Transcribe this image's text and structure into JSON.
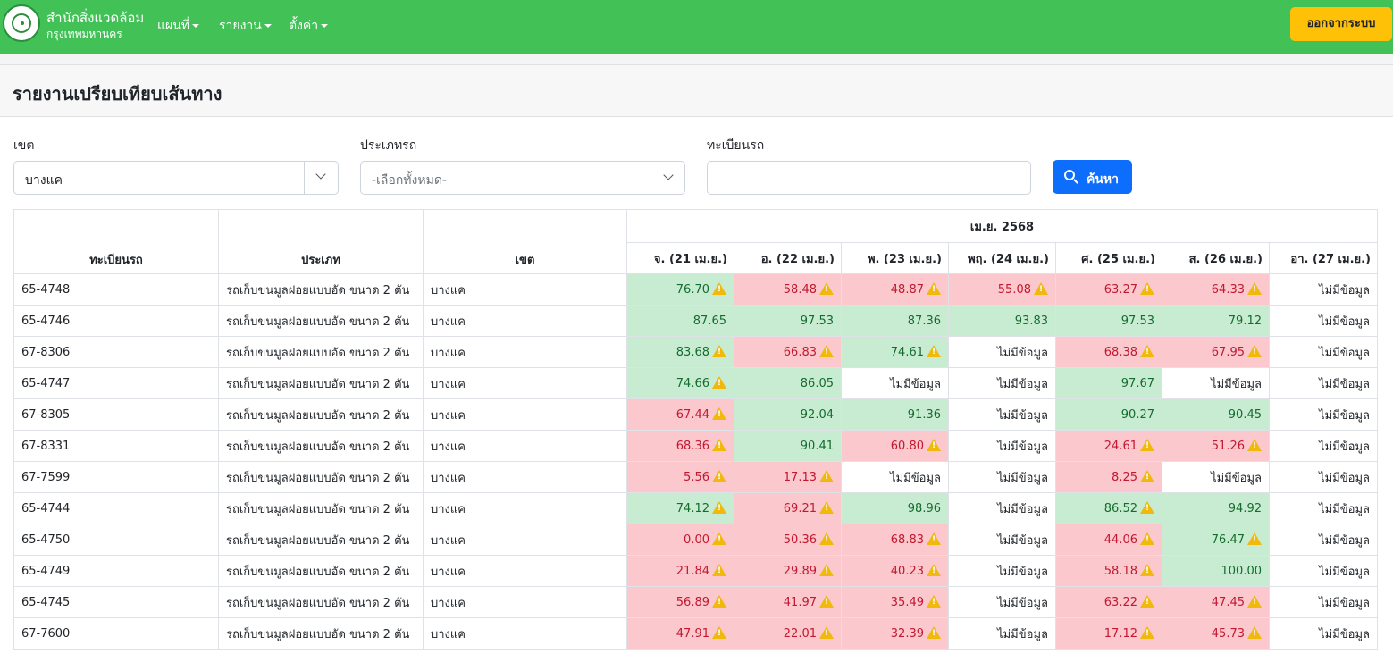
{
  "nav": {
    "brand_title": "สำนักสิ่งแวดล้อม",
    "brand_subtitle": "กรุงเทพมหานคร",
    "menus": [
      "แผนที่",
      "รายงาน",
      "ตั้งค่า"
    ],
    "logout_label": "ออกจากระบบ"
  },
  "page": {
    "title": "รายงานเปรียบเทียบเส้นทาง"
  },
  "filters": {
    "district_label": "เขต",
    "district_value": "บางแค",
    "type_label": "ประเภทรถ",
    "type_value": "-เลือกทั้งหมด-",
    "plate_label": "ทะเบียนรถ",
    "plate_value": "",
    "search_label": "ค้นหา"
  },
  "colors": {
    "good": "#c8ecd1",
    "bad": "#fbc8cd",
    "warning": "#f0b90b",
    "navbar": "#41c156",
    "logout": "#ffc107",
    "primary": "#0d6efd"
  },
  "table": {
    "headers": {
      "plate": "ทะเบียนรถ",
      "type": "ประเภท",
      "district": "เขต",
      "month": "เม.ย. 2568"
    },
    "days": [
      "จ. (21 เม.ย.)",
      "อ. (22 เม.ย.)",
      "พ. (23 เม.ย.)",
      "พฤ. (24 เม.ย.)",
      "ศ. (25 เม.ย.)",
      "ส. (26 เม.ย.)",
      "อา. (27 เม.ย.)"
    ],
    "no_data_text": "ไม่มีข้อมูล",
    "rows": [
      {
        "plate": "65-4748",
        "type": "รถเก็บขนมูลฝอยแบบอัด ขนาด 2 ตัน",
        "district": "บางแค",
        "cells": [
          {
            "value": "76.70",
            "status": "good",
            "warn": true
          },
          {
            "value": "58.48",
            "status": "bad",
            "warn": true
          },
          {
            "value": "48.87",
            "status": "bad",
            "warn": true
          },
          {
            "value": "55.08",
            "status": "bad",
            "warn": true
          },
          {
            "value": "63.27",
            "status": "bad",
            "warn": true
          },
          {
            "value": "64.33",
            "status": "bad",
            "warn": true
          },
          {
            "value": "ไม่มีข้อมูล",
            "status": "none",
            "warn": false
          }
        ]
      },
      {
        "plate": "65-4746",
        "type": "รถเก็บขนมูลฝอยแบบอัด ขนาด 2 ตัน",
        "district": "บางแค",
        "cells": [
          {
            "value": "87.65",
            "status": "good",
            "warn": false
          },
          {
            "value": "97.53",
            "status": "good",
            "warn": false
          },
          {
            "value": "87.36",
            "status": "good",
            "warn": false
          },
          {
            "value": "93.83",
            "status": "good",
            "warn": false
          },
          {
            "value": "97.53",
            "status": "good",
            "warn": false
          },
          {
            "value": "79.12",
            "status": "good",
            "warn": false
          },
          {
            "value": "ไม่มีข้อมูล",
            "status": "none",
            "warn": false
          }
        ]
      },
      {
        "plate": "67-8306",
        "type": "รถเก็บขนมูลฝอยแบบอัด ขนาด 2 ตัน",
        "district": "บางแค",
        "cells": [
          {
            "value": "83.68",
            "status": "good",
            "warn": true
          },
          {
            "value": "66.83",
            "status": "bad",
            "warn": true
          },
          {
            "value": "74.61",
            "status": "good",
            "warn": true
          },
          {
            "value": "ไม่มีข้อมูล",
            "status": "none",
            "warn": false
          },
          {
            "value": "68.38",
            "status": "bad",
            "warn": true
          },
          {
            "value": "67.95",
            "status": "bad",
            "warn": true
          },
          {
            "value": "ไม่มีข้อมูล",
            "status": "none",
            "warn": false
          }
        ]
      },
      {
        "plate": "65-4747",
        "type": "รถเก็บขนมูลฝอยแบบอัด ขนาด 2 ตัน",
        "district": "บางแค",
        "cells": [
          {
            "value": "74.66",
            "status": "good",
            "warn": true
          },
          {
            "value": "86.05",
            "status": "good",
            "warn": false
          },
          {
            "value": "ไม่มีข้อมูล",
            "status": "none",
            "warn": false
          },
          {
            "value": "ไม่มีข้อมูล",
            "status": "none",
            "warn": false
          },
          {
            "value": "97.67",
            "status": "good",
            "warn": false
          },
          {
            "value": "ไม่มีข้อมูล",
            "status": "none",
            "warn": false
          },
          {
            "value": "ไม่มีข้อมูล",
            "status": "none",
            "warn": false
          }
        ]
      },
      {
        "plate": "67-8305",
        "type": "รถเก็บขนมูลฝอยแบบอัด ขนาด 2 ตัน",
        "district": "บางแค",
        "cells": [
          {
            "value": "67.44",
            "status": "bad",
            "warn": true
          },
          {
            "value": "92.04",
            "status": "good",
            "warn": false
          },
          {
            "value": "91.36",
            "status": "good",
            "warn": false
          },
          {
            "value": "ไม่มีข้อมูล",
            "status": "none",
            "warn": false
          },
          {
            "value": "90.27",
            "status": "good",
            "warn": false
          },
          {
            "value": "90.45",
            "status": "good",
            "warn": false
          },
          {
            "value": "ไม่มีข้อมูล",
            "status": "none",
            "warn": false
          }
        ]
      },
      {
        "plate": "67-8331",
        "type": "รถเก็บขนมูลฝอยแบบอัด ขนาด 2 ตัน",
        "district": "บางแค",
        "cells": [
          {
            "value": "68.36",
            "status": "bad",
            "warn": true
          },
          {
            "value": "90.41",
            "status": "good",
            "warn": false
          },
          {
            "value": "60.80",
            "status": "bad",
            "warn": true
          },
          {
            "value": "ไม่มีข้อมูล",
            "status": "none",
            "warn": false
          },
          {
            "value": "24.61",
            "status": "bad",
            "warn": true
          },
          {
            "value": "51.26",
            "status": "bad",
            "warn": true
          },
          {
            "value": "ไม่มีข้อมูล",
            "status": "none",
            "warn": false
          }
        ]
      },
      {
        "plate": "67-7599",
        "type": "รถเก็บขนมูลฝอยแบบอัด ขนาด 2 ตัน",
        "district": "บางแค",
        "cells": [
          {
            "value": "5.56",
            "status": "bad",
            "warn": true
          },
          {
            "value": "17.13",
            "status": "bad",
            "warn": true
          },
          {
            "value": "ไม่มีข้อมูล",
            "status": "none",
            "warn": false
          },
          {
            "value": "ไม่มีข้อมูล",
            "status": "none",
            "warn": false
          },
          {
            "value": "8.25",
            "status": "bad",
            "warn": true
          },
          {
            "value": "ไม่มีข้อมูล",
            "status": "none",
            "warn": false
          },
          {
            "value": "ไม่มีข้อมูล",
            "status": "none",
            "warn": false
          }
        ]
      },
      {
        "plate": "65-4744",
        "type": "รถเก็บขนมูลฝอยแบบอัด ขนาด 2 ตัน",
        "district": "บางแค",
        "cells": [
          {
            "value": "74.12",
            "status": "good",
            "warn": true
          },
          {
            "value": "69.21",
            "status": "bad",
            "warn": true
          },
          {
            "value": "98.96",
            "status": "good",
            "warn": false
          },
          {
            "value": "ไม่มีข้อมูล",
            "status": "none",
            "warn": false
          },
          {
            "value": "86.52",
            "status": "good",
            "warn": true
          },
          {
            "value": "94.92",
            "status": "good",
            "warn": false
          },
          {
            "value": "ไม่มีข้อมูล",
            "status": "none",
            "warn": false
          }
        ]
      },
      {
        "plate": "65-4750",
        "type": "รถเก็บขนมูลฝอยแบบอัด ขนาด 2 ตัน",
        "district": "บางแค",
        "cells": [
          {
            "value": "0.00",
            "status": "bad",
            "warn": true
          },
          {
            "value": "50.36",
            "status": "bad",
            "warn": true
          },
          {
            "value": "68.83",
            "status": "bad",
            "warn": true
          },
          {
            "value": "ไม่มีข้อมูล",
            "status": "none",
            "warn": false
          },
          {
            "value": "44.06",
            "status": "bad",
            "warn": true
          },
          {
            "value": "76.47",
            "status": "good",
            "warn": true
          },
          {
            "value": "ไม่มีข้อมูล",
            "status": "none",
            "warn": false
          }
        ]
      },
      {
        "plate": "65-4749",
        "type": "รถเก็บขนมูลฝอยแบบอัด ขนาด 2 ตัน",
        "district": "บางแค",
        "cells": [
          {
            "value": "21.84",
            "status": "bad",
            "warn": true
          },
          {
            "value": "29.89",
            "status": "bad",
            "warn": true
          },
          {
            "value": "40.23",
            "status": "bad",
            "warn": true
          },
          {
            "value": "ไม่มีข้อมูล",
            "status": "none",
            "warn": false
          },
          {
            "value": "58.18",
            "status": "bad",
            "warn": true
          },
          {
            "value": "100.00",
            "status": "good",
            "warn": false
          },
          {
            "value": "ไม่มีข้อมูล",
            "status": "none",
            "warn": false
          }
        ]
      },
      {
        "plate": "65-4745",
        "type": "รถเก็บขนมูลฝอยแบบอัด ขนาด 2 ตัน",
        "district": "บางแค",
        "cells": [
          {
            "value": "56.89",
            "status": "bad",
            "warn": true
          },
          {
            "value": "41.97",
            "status": "bad",
            "warn": true
          },
          {
            "value": "35.49",
            "status": "bad",
            "warn": true
          },
          {
            "value": "ไม่มีข้อมูล",
            "status": "none",
            "warn": false
          },
          {
            "value": "63.22",
            "status": "bad",
            "warn": true
          },
          {
            "value": "47.45",
            "status": "bad",
            "warn": true
          },
          {
            "value": "ไม่มีข้อมูล",
            "status": "none",
            "warn": false
          }
        ]
      },
      {
        "plate": "67-7600",
        "type": "รถเก็บขนมูลฝอยแบบอัด ขนาด 2 ตัน",
        "district": "บางแค",
        "cells": [
          {
            "value": "47.91",
            "status": "bad",
            "warn": true
          },
          {
            "value": "22.01",
            "status": "bad",
            "warn": true
          },
          {
            "value": "32.39",
            "status": "bad",
            "warn": true
          },
          {
            "value": "ไม่มีข้อมูล",
            "status": "none",
            "warn": false
          },
          {
            "value": "17.12",
            "status": "bad",
            "warn": true
          },
          {
            "value": "45.73",
            "status": "bad",
            "warn": true
          },
          {
            "value": "ไม่มีข้อมูล",
            "status": "none",
            "warn": false
          }
        ]
      }
    ]
  }
}
